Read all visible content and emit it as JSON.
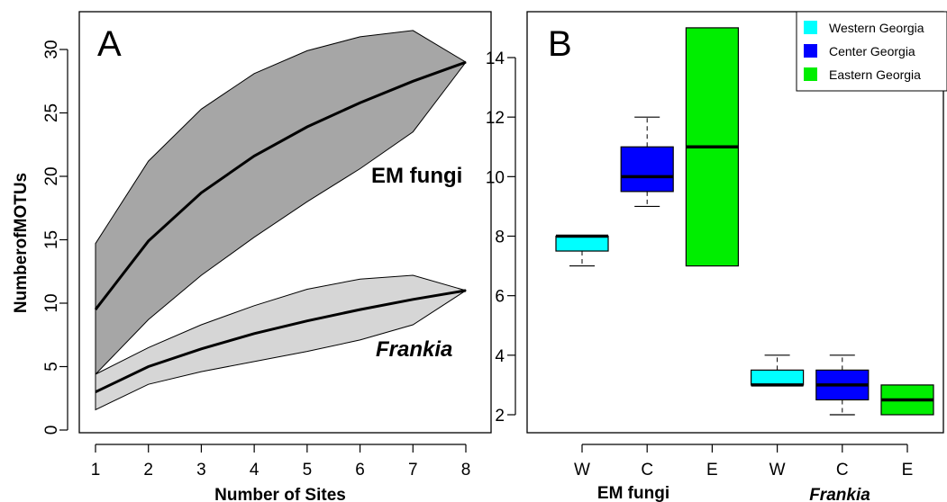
{
  "chart_data": [
    {
      "panel": "A",
      "type": "area",
      "x": [
        1,
        2,
        3,
        4,
        5,
        6,
        7,
        8
      ],
      "xlabel": "Number of Sites",
      "ylabel": "NumberofMOTUs",
      "xlim": [
        1,
        8
      ],
      "ylim": [
        0,
        32
      ],
      "xticks": [
        1,
        2,
        3,
        4,
        5,
        6,
        7,
        8
      ],
      "yticks": [
        0,
        5,
        10,
        15,
        20,
        25,
        30
      ],
      "series": [
        {
          "name": "EM fungi",
          "fill": "#a6a6a6",
          "mean": [
            9.5,
            14.9,
            18.7,
            21.6,
            23.9,
            25.8,
            27.5,
            29.0
          ],
          "lower": [
            4.4,
            8.7,
            12.2,
            15.2,
            18.0,
            20.6,
            23.5,
            29.0
          ],
          "upper": [
            14.7,
            21.2,
            25.3,
            28.1,
            29.9,
            31.0,
            31.5,
            29.0
          ]
        },
        {
          "name": "Frankia",
          "italic": true,
          "fill": "#d6d6d6",
          "mean": [
            3.0,
            5.0,
            6.4,
            7.6,
            8.6,
            9.5,
            10.3,
            11.0
          ],
          "lower": [
            1.6,
            3.6,
            4.6,
            5.4,
            6.2,
            7.1,
            8.3,
            11.0
          ],
          "upper": [
            4.4,
            6.5,
            8.3,
            9.8,
            11.1,
            11.9,
            12.2,
            11.0
          ]
        }
      ]
    },
    {
      "panel": "B",
      "type": "box",
      "ylim": [
        1.5,
        15.5
      ],
      "yticks": [
        2,
        4,
        6,
        8,
        10,
        12,
        14
      ],
      "categories": [
        "W",
        "C",
        "E",
        "W",
        "C",
        "E"
      ],
      "groups": [
        {
          "label": "EM fungi",
          "italic": false
        },
        {
          "label": "Frankia",
          "italic": true
        }
      ],
      "boxes": [
        {
          "group": 0,
          "region": 0,
          "whisker_low": 7,
          "q1": 7.5,
          "median": 8,
          "q3": 8,
          "whisker_high": 8
        },
        {
          "group": 0,
          "region": 1,
          "whisker_low": 9,
          "q1": 9.5,
          "median": 10,
          "q3": 11,
          "whisker_high": 12
        },
        {
          "group": 0,
          "region": 2,
          "whisker_low": 7,
          "q1": 7,
          "median": 11,
          "q3": 15,
          "whisker_high": 15
        },
        {
          "group": 1,
          "region": 0,
          "whisker_low": 3,
          "q1": 3,
          "median": 3,
          "q3": 3.5,
          "whisker_high": 4
        },
        {
          "group": 1,
          "region": 1,
          "whisker_low": 2,
          "q1": 2.5,
          "median": 3,
          "q3": 3.5,
          "whisker_high": 4
        },
        {
          "group": 1,
          "region": 2,
          "whisker_low": 2,
          "q1": 2,
          "median": 2.5,
          "q3": 3,
          "whisker_high": 3
        }
      ],
      "legend": {
        "placement": "top-right",
        "entries": [
          {
            "name": "Western Georgia",
            "color": "#00ffff"
          },
          {
            "name": "Center Georgia",
            "color": "#0000ff"
          },
          {
            "name": "Eastern Georgia",
            "color": "#00ee00"
          }
        ]
      }
    }
  ]
}
